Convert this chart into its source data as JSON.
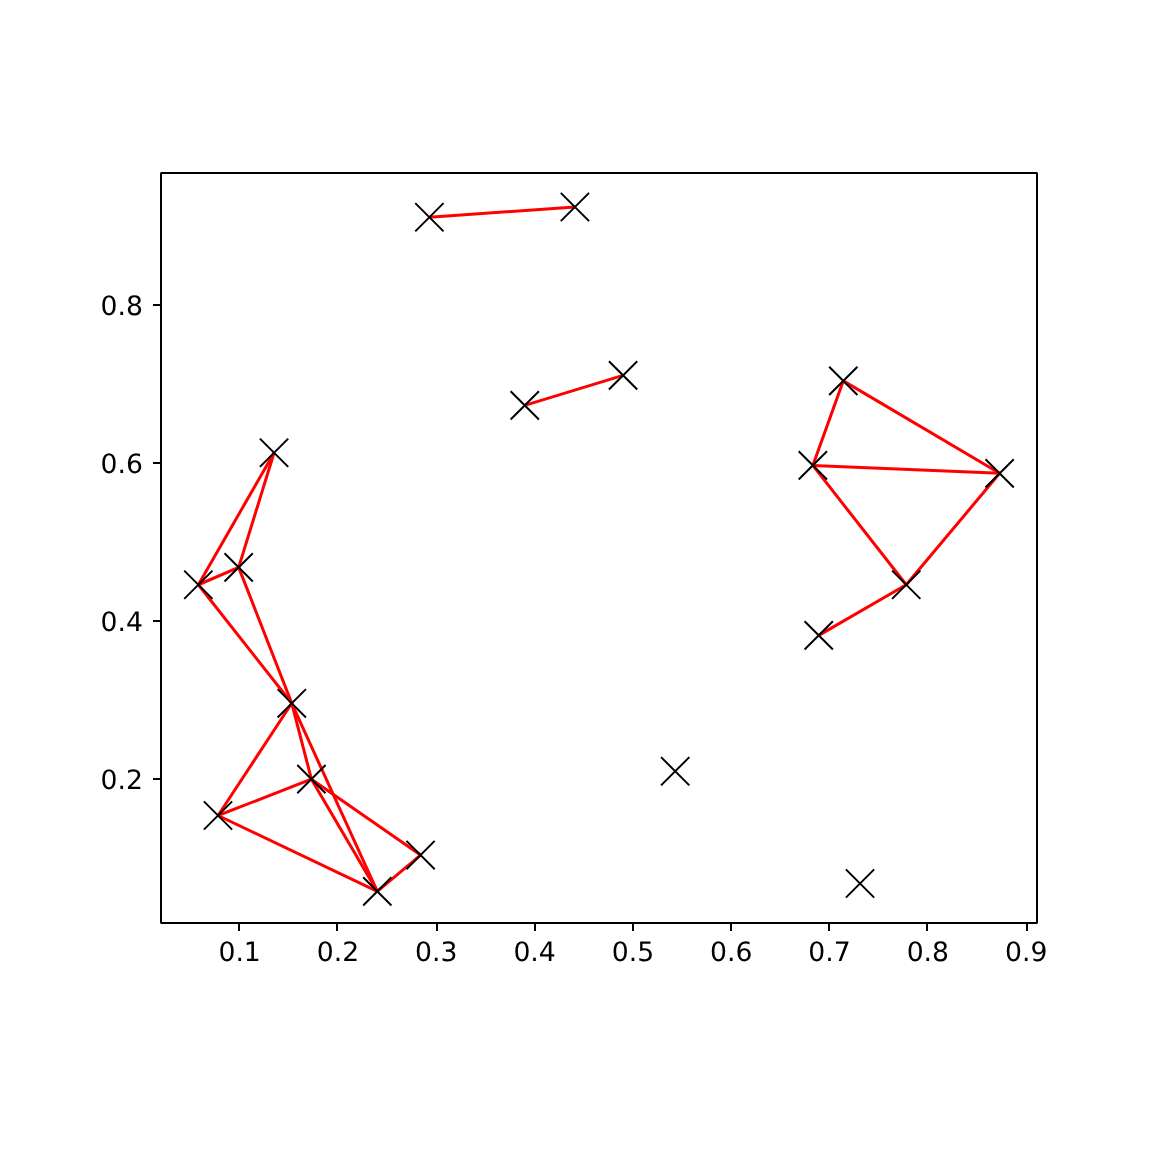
{
  "chart_data": {
    "type": "scatter",
    "xlim": [
      0.02,
      0.911
    ],
    "ylim": [
      0.018,
      0.967
    ],
    "xticks": [
      0.1,
      0.2,
      0.3,
      0.4,
      0.5,
      0.6,
      0.7,
      0.8,
      0.9
    ],
    "yticks": [
      0.2,
      0.4,
      0.6,
      0.8
    ],
    "grid": false,
    "series": [
      {
        "marker": "cross",
        "color": "#000000",
        "x": [
          0.293,
          0.441,
          0.39,
          0.49,
          0.714,
          0.683,
          0.873,
          0.778,
          0.689,
          0.135,
          0.099,
          0.058,
          0.153,
          0.173,
          0.078,
          0.284,
          0.24,
          0.543,
          0.731
        ],
        "values": [
          0.911,
          0.924,
          0.673,
          0.711,
          0.704,
          0.597,
          0.587,
          0.446,
          0.382,
          0.613,
          0.468,
          0.446,
          0.296,
          0.2,
          0.154,
          0.104,
          0.058,
          0.21,
          0.068
        ]
      },
      {
        "type": "line",
        "color": "#ff0000",
        "x": [
          0.293,
          0.441
        ],
        "values": [
          0.911,
          0.924
        ]
      },
      {
        "type": "line",
        "color": "#ff0000",
        "x": [
          0.39,
          0.49
        ],
        "values": [
          0.673,
          0.711
        ]
      },
      {
        "type": "line",
        "color": "#ff0000",
        "x": [
          0.714,
          0.683
        ],
        "values": [
          0.704,
          0.597
        ]
      },
      {
        "type": "line",
        "color": "#ff0000",
        "x": [
          0.714,
          0.873
        ],
        "values": [
          0.704,
          0.587
        ]
      },
      {
        "type": "line",
        "color": "#ff0000",
        "x": [
          0.683,
          0.873
        ],
        "values": [
          0.597,
          0.587
        ]
      },
      {
        "type": "line",
        "color": "#ff0000",
        "x": [
          0.683,
          0.778
        ],
        "values": [
          0.597,
          0.446
        ]
      },
      {
        "type": "line",
        "color": "#ff0000",
        "x": [
          0.873,
          0.778
        ],
        "values": [
          0.587,
          0.446
        ]
      },
      {
        "type": "line",
        "color": "#ff0000",
        "x": [
          0.778,
          0.689
        ],
        "values": [
          0.446,
          0.382
        ]
      },
      {
        "type": "line",
        "color": "#ff0000",
        "x": [
          0.135,
          0.099
        ],
        "values": [
          0.613,
          0.468
        ]
      },
      {
        "type": "line",
        "color": "#ff0000",
        "x": [
          0.135,
          0.058
        ],
        "values": [
          0.613,
          0.446
        ]
      },
      {
        "type": "line",
        "color": "#ff0000",
        "x": [
          0.099,
          0.058
        ],
        "values": [
          0.468,
          0.446
        ]
      },
      {
        "type": "line",
        "color": "#ff0000",
        "x": [
          0.099,
          0.153
        ],
        "values": [
          0.468,
          0.296
        ]
      },
      {
        "type": "line",
        "color": "#ff0000",
        "x": [
          0.058,
          0.153
        ],
        "values": [
          0.446,
          0.296
        ]
      },
      {
        "type": "line",
        "color": "#ff0000",
        "x": [
          0.153,
          0.078
        ],
        "values": [
          0.296,
          0.154
        ]
      },
      {
        "type": "line",
        "color": "#ff0000",
        "x": [
          0.153,
          0.173
        ],
        "values": [
          0.296,
          0.2
        ]
      },
      {
        "type": "line",
        "color": "#ff0000",
        "x": [
          0.153,
          0.24
        ],
        "values": [
          0.296,
          0.058
        ]
      },
      {
        "type": "line",
        "color": "#ff0000",
        "x": [
          0.078,
          0.173
        ],
        "values": [
          0.154,
          0.2
        ]
      },
      {
        "type": "line",
        "color": "#ff0000",
        "x": [
          0.078,
          0.24
        ],
        "values": [
          0.154,
          0.058
        ]
      },
      {
        "type": "line",
        "color": "#ff0000",
        "x": [
          0.173,
          0.284
        ],
        "values": [
          0.2,
          0.104
        ]
      },
      {
        "type": "line",
        "color": "#ff0000",
        "x": [
          0.173,
          0.24
        ],
        "values": [
          0.2,
          0.058
        ]
      },
      {
        "type": "line",
        "color": "#ff0000",
        "x": [
          0.284,
          0.24
        ],
        "values": [
          0.104,
          0.058
        ]
      }
    ]
  }
}
